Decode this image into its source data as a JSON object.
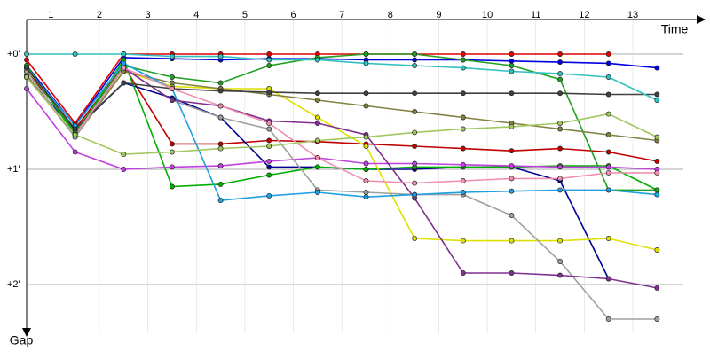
{
  "chart_data": {
    "type": "line",
    "x_label": "Time",
    "y_label": "Gap",
    "x": [
      0,
      1,
      2,
      3,
      4,
      5,
      6,
      7,
      8,
      9,
      10,
      11,
      12,
      13
    ],
    "xlim": [
      0,
      14
    ],
    "xticks": [
      {
        "value": 0.5,
        "label": "1"
      },
      {
        "value": 1.5,
        "label": "2"
      },
      {
        "value": 2.5,
        "label": "3"
      },
      {
        "value": 3.5,
        "label": "4"
      },
      {
        "value": 4.5,
        "label": "5"
      },
      {
        "value": 5.5,
        "label": "6"
      },
      {
        "value": 6.5,
        "label": "7"
      },
      {
        "value": 7.5,
        "label": "8"
      },
      {
        "value": 8.5,
        "label": "9"
      },
      {
        "value": 9.5,
        "label": "10"
      },
      {
        "value": 10.5,
        "label": "11"
      },
      {
        "value": 11.5,
        "label": "12"
      },
      {
        "value": 12.5,
        "label": "13"
      }
    ],
    "ylim": [
      -0.3,
      2.5
    ],
    "yticks": [
      {
        "value": 0,
        "label": "+0'"
      },
      {
        "value": 1,
        "label": "+1'"
      },
      {
        "value": 2,
        "label": "+2'"
      }
    ],
    "grid": true,
    "series": [
      {
        "color": "#e00000",
        "values": [
          0.05,
          0.6,
          0.0,
          0.0,
          0.0,
          0.0,
          0.0,
          0.0,
          0.0,
          0.0,
          0.0,
          0.0,
          0.0,
          null
        ]
      },
      {
        "color": "#c00000",
        "values": [
          0.15,
          0.65,
          0.1,
          0.78,
          0.78,
          0.75,
          0.76,
          0.78,
          0.8,
          0.82,
          0.84,
          0.82,
          0.85,
          0.93
        ]
      },
      {
        "color": "#0000e0",
        "values": [
          0.1,
          0.62,
          0.03,
          0.04,
          0.05,
          0.04,
          0.04,
          0.05,
          0.05,
          0.05,
          0.06,
          0.07,
          0.08,
          0.12
        ]
      },
      {
        "color": "#000090",
        "values": [
          0.2,
          0.66,
          0.25,
          0.38,
          0.55,
          0.98,
          0.98,
          1.0,
          1.0,
          0.98,
          0.98,
          1.1,
          1.95,
          null
        ]
      },
      {
        "color": "#00b000",
        "values": [
          0.1,
          0.7,
          0.05,
          1.15,
          1.13,
          1.05,
          0.98,
          1.0,
          0.98,
          0.98,
          0.98,
          0.97,
          0.97,
          1.18
        ]
      },
      {
        "color": "#20a020",
        "values": [
          0.12,
          0.68,
          0.1,
          0.2,
          0.25,
          0.1,
          0.03,
          0.0,
          0.0,
          0.05,
          0.1,
          0.22,
          1.18,
          1.18
        ]
      },
      {
        "color": "#e0e000",
        "values": [
          0.2,
          0.7,
          0.15,
          0.28,
          0.3,
          0.3,
          0.55,
          0.8,
          1.6,
          1.62,
          1.62,
          1.62,
          1.6,
          1.7
        ]
      },
      {
        "color": "#c040e0",
        "values": [
          0.3,
          0.85,
          1.0,
          0.98,
          0.97,
          0.93,
          0.9,
          0.95,
          0.95,
          0.96,
          0.97,
          0.98,
          0.98,
          1.0
        ]
      },
      {
        "color": "#808040",
        "values": [
          0.18,
          0.72,
          0.15,
          0.25,
          0.3,
          0.35,
          0.4,
          0.45,
          0.5,
          0.55,
          0.6,
          0.65,
          0.7,
          0.75
        ]
      },
      {
        "color": "#a0a0a0",
        "values": [
          0.15,
          0.72,
          0.12,
          0.4,
          0.55,
          0.65,
          1.18,
          1.2,
          1.22,
          1.22,
          1.4,
          1.8,
          2.3,
          2.3
        ]
      },
      {
        "color": "#803090",
        "values": [
          0.2,
          0.7,
          0.12,
          0.4,
          0.45,
          0.58,
          0.6,
          0.7,
          1.25,
          1.9,
          1.9,
          1.92,
          1.95,
          2.03
        ]
      },
      {
        "color": "#20a0e0",
        "values": [
          0.12,
          0.62,
          0.08,
          0.3,
          1.27,
          1.23,
          1.2,
          1.24,
          1.22,
          1.2,
          1.19,
          1.18,
          1.18,
          1.22
        ]
      },
      {
        "color": "#404040",
        "values": [
          0.12,
          0.65,
          0.25,
          0.3,
          0.32,
          0.33,
          0.34,
          0.34,
          0.34,
          0.34,
          0.34,
          0.34,
          0.35,
          0.35
        ]
      },
      {
        "color": "#f090b0",
        "values": [
          0.2,
          0.7,
          0.12,
          0.3,
          0.45,
          0.6,
          0.9,
          1.1,
          1.12,
          1.1,
          1.08,
          1.08,
          1.03,
          1.03
        ]
      },
      {
        "color": "#a0c860",
        "values": [
          0.2,
          0.7,
          0.87,
          0.85,
          0.82,
          0.8,
          0.75,
          0.72,
          0.68,
          0.65,
          0.63,
          0.6,
          0.52,
          0.72
        ]
      },
      {
        "color": "#30c0c0",
        "values": [
          0.0,
          0.0,
          0.0,
          0.02,
          0.02,
          0.05,
          0.05,
          0.08,
          0.1,
          0.12,
          0.15,
          0.17,
          0.2,
          0.4
        ]
      }
    ]
  }
}
